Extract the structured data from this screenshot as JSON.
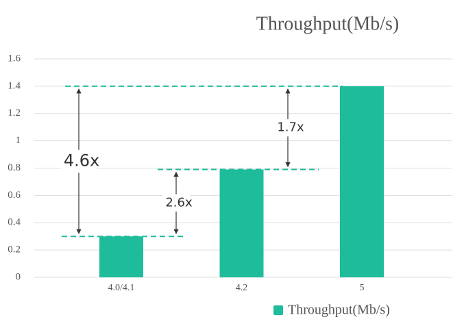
{
  "chart_data": {
    "type": "bar",
    "title": "Throughput(Mb/s)",
    "categories": [
      "4.0/4.1",
      "4.2",
      "5"
    ],
    "series": [
      {
        "name": "Throughput(Mb/s)",
        "color": "#1fbc9c",
        "values": [
          0.3,
          0.79,
          1.4
        ]
      }
    ],
    "ylim": [
      0,
      1.6
    ],
    "yticks": [
      0,
      0.2,
      0.4,
      0.6,
      0.8,
      1,
      1.2,
      1.4,
      1.6
    ],
    "grid": true,
    "legend": "bottom-right",
    "annotations": [
      "4.6x",
      "2.6x",
      "1.7x"
    ]
  }
}
